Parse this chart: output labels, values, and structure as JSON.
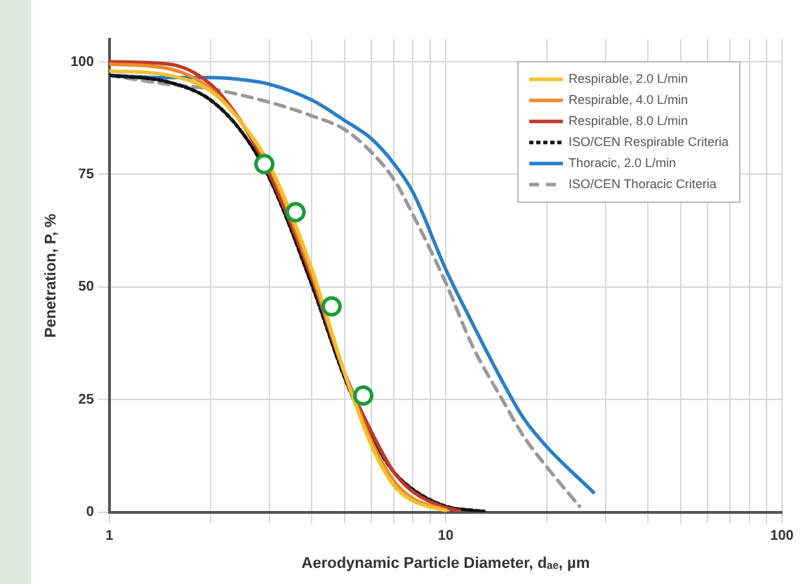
{
  "chart_data": {
    "type": "line",
    "xlabel": "Aerodynamic Particle Diameter, dₐₑ, µm",
    "ylabel": "Penetration, P, %",
    "log": "x",
    "xlim": [
      1,
      100
    ],
    "xticks": [
      1,
      {
        "value": 2,
        "label": null
      },
      {
        "value": 3,
        "label": null
      },
      {
        "value": 4,
        "label": null
      },
      {
        "value": 5,
        "label": null
      },
      {
        "value": 6,
        "label": null
      },
      {
        "value": 7,
        "label": null
      },
      {
        "value": 8,
        "label": null
      },
      {
        "value": 9,
        "label": null
      },
      10,
      {
        "value": 20,
        "label": null
      },
      {
        "value": 30,
        "label": null
      },
      {
        "value": 40,
        "label": null
      },
      {
        "value": 50,
        "label": null
      },
      {
        "value": 60,
        "label": null
      },
      {
        "value": 70,
        "label": null
      },
      {
        "value": 80,
        "label": null
      },
      {
        "value": 90,
        "label": null
      },
      100
    ],
    "ylim": [
      0,
      105
    ],
    "yticks": [
      0,
      25,
      50,
      75,
      100
    ],
    "grid": true,
    "legend": "top right",
    "marker": "none",
    "series": [
      {
        "name": "Respirable, 2.0 L/min",
        "color": "#f2c12e",
        "line_style": "solid",
        "x": [
          1,
          1.5,
          2,
          2.5,
          3,
          4,
          5,
          6,
          7,
          8,
          10
        ],
        "values": [
          98,
          97,
          93.5,
          86,
          77,
          54,
          31,
          15,
          6,
          2.5,
          0.3
        ]
      },
      {
        "name": "Respirable, 4.0 L/min",
        "color": "#ee8a2a",
        "line_style": "solid",
        "x": [
          1,
          1.5,
          2,
          2.5,
          3,
          4,
          5,
          6,
          7,
          8,
          10
        ],
        "values": [
          99.5,
          98.5,
          94,
          86,
          76.5,
          53,
          31,
          16,
          7,
          3,
          0.5
        ]
      },
      {
        "name": "Respirable, 8.0 L/min",
        "color": "#c0392b",
        "line_style": "solid",
        "x": [
          1,
          1.5,
          2,
          2.5,
          3,
          4,
          5,
          6,
          7,
          8,
          10,
          11
        ],
        "values": [
          100,
          99.5,
          95,
          86,
          75,
          52,
          31,
          18,
          9,
          4.5,
          1,
          0.3
        ]
      },
      {
        "name": "ISO/CEN Respirable Criteria",
        "color": "#111111",
        "line_style": "dotted",
        "x": [
          1,
          1.5,
          2,
          2.5,
          3,
          4,
          5,
          6,
          7,
          8,
          10,
          12,
          13
        ],
        "values": [
          97,
          95.5,
          91.5,
          84,
          74,
          50.5,
          30,
          17,
          9,
          5,
          1.3,
          0.4,
          0.2
        ]
      },
      {
        "name": "Thoracic, 2.0 L/min",
        "color": "#2a7fc4",
        "line_style": "solid",
        "x": [
          1,
          1.5,
          2,
          2.5,
          3,
          4,
          5,
          6,
          7,
          8,
          10,
          12,
          15,
          17,
          20,
          27.5
        ],
        "values": [
          97,
          96.5,
          96.5,
          96,
          95,
          91.5,
          87,
          83,
          77.5,
          71,
          54,
          42,
          28,
          21,
          14.5,
          4.4
        ]
      },
      {
        "name": "ISO/CEN Thoracic Criteria",
        "color": "#999999",
        "line_style": "dashed",
        "x": [
          1,
          1.5,
          2,
          3,
          4,
          5,
          6,
          7,
          8,
          10,
          12,
          15,
          17,
          20,
          25
        ],
        "values": [
          97,
          95,
          94,
          91,
          88,
          85,
          80,
          74,
          66,
          51,
          37,
          24,
          17,
          10,
          1.3
        ]
      },
      {
        "type": "scatter",
        "color": "#1a9c3a",
        "marker": "circle",
        "x": [
          2.89,
          3.58,
          4.58,
          5.69
        ],
        "values": [
          77.3,
          66.6,
          45.7,
          25.9
        ]
      }
    ]
  }
}
